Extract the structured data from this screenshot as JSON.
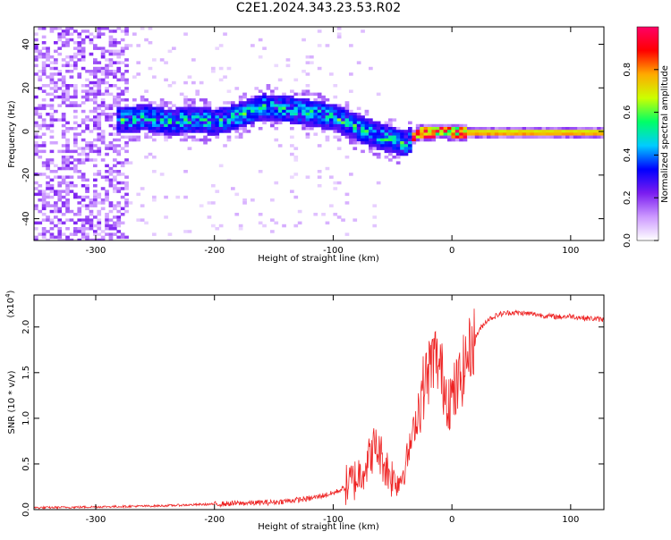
{
  "figure": {
    "title": "C2E1.2024.343.23.53.R02"
  },
  "chart_data": [
    {
      "type": "heatmap",
      "title": "C2E1.2024.343.23.53.R02",
      "xlabel": "Height of straight line (km)",
      "ylabel": "Frequency (Hz)",
      "xlim": [
        -352,
        128
      ],
      "ylim": [
        -50,
        48
      ],
      "xticks": [
        -300,
        -200,
        -100,
        0,
        100
      ],
      "yticks": [
        40,
        20,
        0,
        -20,
        -40
      ],
      "grid": false,
      "colorbar": {
        "label": "Normalized spectral amplitude",
        "range": [
          0,
          1
        ],
        "ticks": [
          0.0,
          0.2,
          0.4,
          0.6,
          0.8
        ],
        "colormap": [
          "#ffffff",
          "#cc99ff",
          "#7a1cf0",
          "#0000ff",
          "#00ccff",
          "#00ff66",
          "#ccff00",
          "#ffaa00",
          "#ff0000",
          "#ff0066"
        ]
      },
      "ridge": {
        "x": [
          -280,
          -260,
          -240,
          -220,
          -200,
          -180,
          -160,
          -140,
          -120,
          -100,
          -80,
          -60,
          -40,
          -30,
          -20,
          -10,
          0,
          20,
          60,
          100,
          128
        ],
        "y": [
          6,
          7,
          5,
          6,
          5,
          8,
          12,
          11,
          9,
          7,
          2,
          -2,
          -5,
          0,
          0,
          1,
          0,
          0,
          0,
          0,
          0
        ]
      }
    },
    {
      "type": "line",
      "xlabel": "Height of straight line (km)",
      "ylabel": "SNR (10 * v/v)",
      "scale_label": "(x10",
      "scale_exp": "4",
      "xlim": [
        -352,
        128
      ],
      "ylim": [
        0,
        2.35
      ],
      "xticks": [
        -300,
        -200,
        -100,
        0,
        100
      ],
      "yticks": [
        0.0,
        0.5,
        1.0,
        1.5,
        2.0
      ],
      "grid": false,
      "series": [
        {
          "color": "#ee2222",
          "x": [
            -352,
            -300,
            -250,
            -200,
            -150,
            -120,
            -100,
            -90,
            -80,
            -70,
            -65,
            -60,
            -55,
            -50,
            -45,
            -40,
            -35,
            -30,
            -25,
            -20,
            -15,
            -10,
            -5,
            0,
            5,
            10,
            15,
            20,
            25,
            30,
            40,
            50,
            60,
            70,
            80,
            90,
            100,
            110,
            120,
            128
          ],
          "y": [
            0.02,
            0.03,
            0.04,
            0.06,
            0.08,
            0.12,
            0.18,
            0.24,
            0.35,
            0.55,
            0.7,
            0.6,
            0.45,
            0.35,
            0.3,
            0.45,
            0.7,
            1.0,
            1.3,
            1.5,
            1.7,
            1.55,
            1.3,
            1.2,
            1.35,
            1.55,
            1.75,
            1.9,
            2.0,
            2.08,
            2.14,
            2.16,
            2.15,
            2.14,
            2.12,
            2.11,
            2.12,
            2.1,
            2.09,
            2.08
          ]
        }
      ]
    }
  ]
}
